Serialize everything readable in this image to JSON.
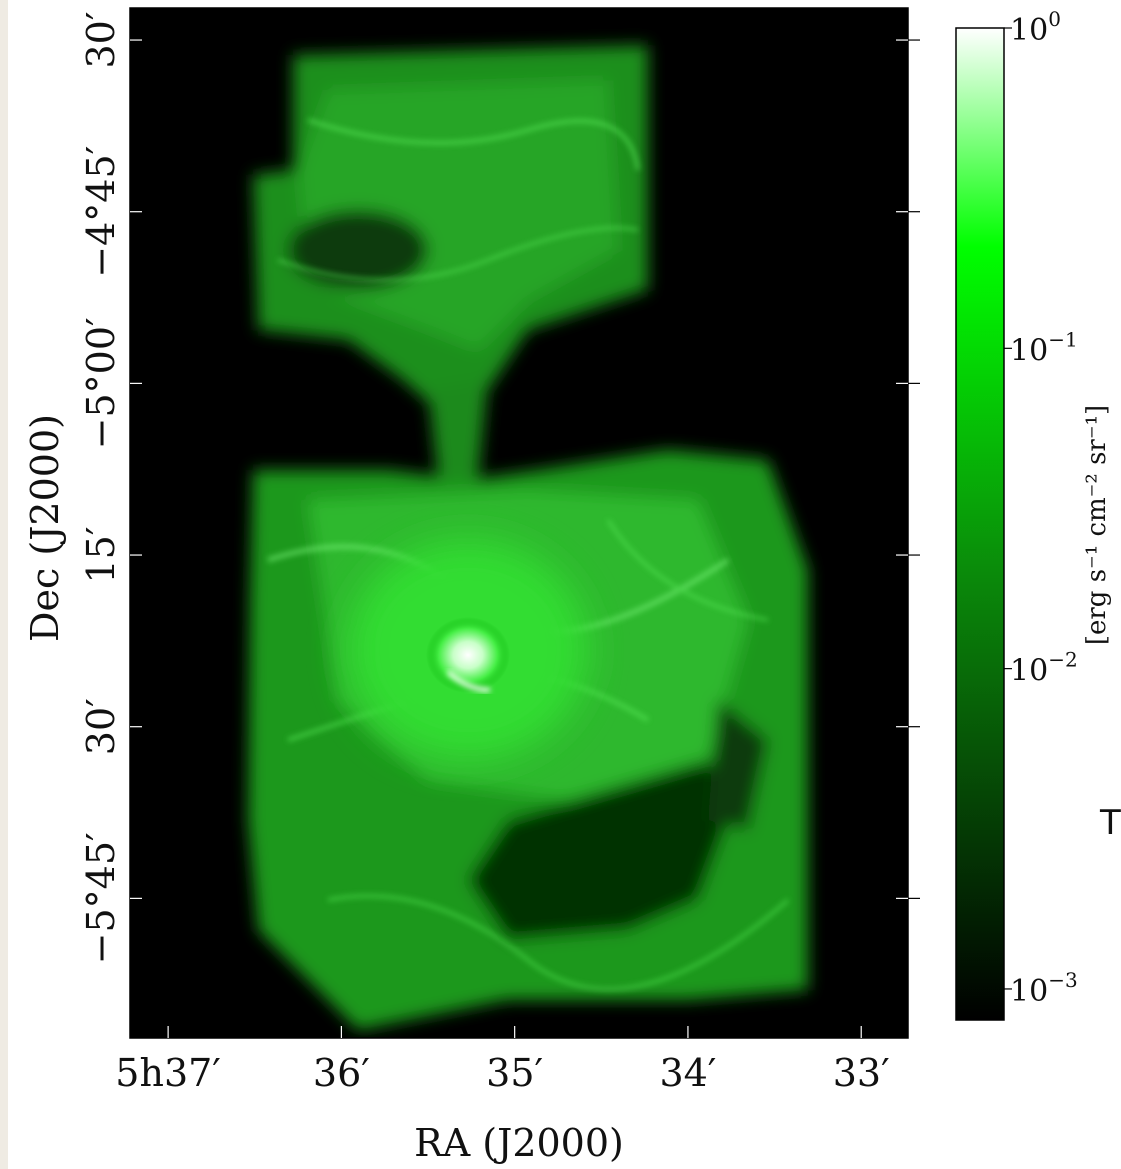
{
  "chart_data": {
    "type": "heatmap",
    "title": "",
    "xlabel": "RA (J2000)",
    "ylabel": "Dec (J2000)",
    "x_ticks": [
      {
        "label": "5h37′",
        "ra_min": 37
      },
      {
        "label": "36′",
        "ra_min": 36
      },
      {
        "label": "35′",
        "ra_min": 35
      },
      {
        "label": "34′",
        "ra_min": 34
      },
      {
        "label": "33′",
        "ra_min": 33
      }
    ],
    "y_ticks": [
      {
        "label": "30′",
        "dec_arcmin": -270
      },
      {
        "label": "−4°45′",
        "dec_arcmin": -285
      },
      {
        "label": "−5°00′",
        "dec_arcmin": -300
      },
      {
        "label": "15′",
        "dec_arcmin": -315
      },
      {
        "label": "30′",
        "dec_arcmin": -330
      },
      {
        "label": "−5°45′",
        "dec_arcmin": -345
      }
    ],
    "xlim_ra_min": [
      37.22,
      32.73
    ],
    "ylim_dec_arcmin": [
      -357.2,
      -267.2
    ],
    "colorbar": {
      "label": "[erg s⁻¹ cm⁻² sr⁻¹]",
      "scale": "log",
      "range": [
        0.0008,
        1
      ],
      "ticks": [
        {
          "base": "10",
          "exp": "0",
          "value": 1
        },
        {
          "base": "10",
          "exp": "−1",
          "value": 0.1
        },
        {
          "base": "10",
          "exp": "−2",
          "value": 0.01
        },
        {
          "base": "10",
          "exp": "−3",
          "value": 0.001
        }
      ],
      "colormap": [
        "#000000",
        "#00ff00",
        "#ffffff"
      ]
    },
    "grid": false,
    "legend": "none"
  },
  "stray_text": "T"
}
